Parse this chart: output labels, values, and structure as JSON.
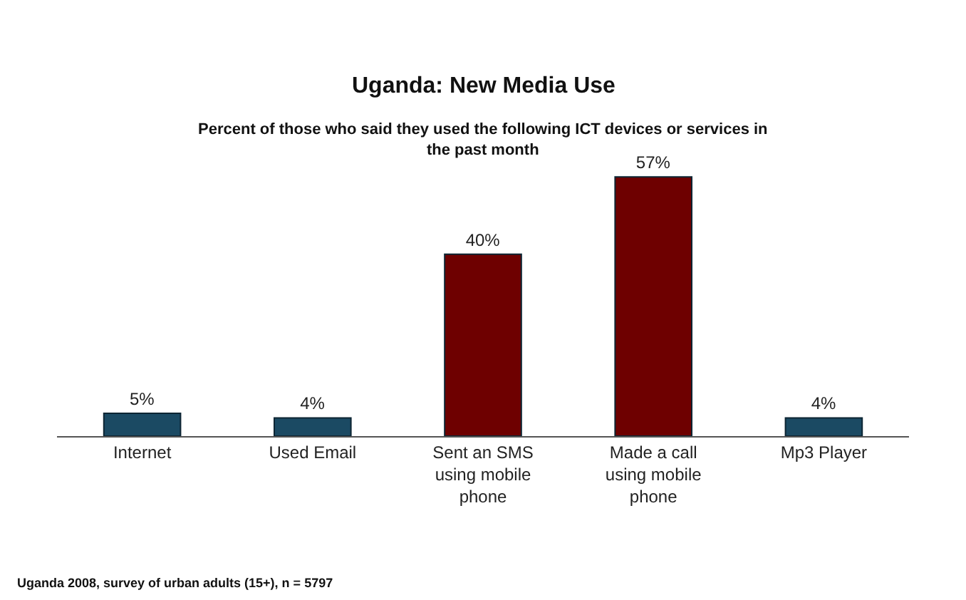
{
  "chart_data": {
    "type": "bar",
    "title": "Uganda: New Media Use",
    "subtitle": "Percent of those who said they used the following ICT devices or services in the past month",
    "categories": [
      "Internet",
      "Used Email",
      "Sent an SMS using mobile phone",
      "Made a call using mobile phone",
      "Mp3 Player"
    ],
    "values": [
      5,
      4,
      40,
      57,
      4
    ],
    "colors": [
      "#1b4a63",
      "#1b4a63",
      "#6e0000",
      "#6e0000",
      "#1b4a63"
    ],
    "data_labels": true,
    "value_labels": [
      "5%",
      "4%",
      "40%",
      "57%",
      "4%"
    ],
    "legend": false,
    "annotations": [
      "Uganda 2008, survey of urban adults (15+), n = 5797"
    ]
  }
}
